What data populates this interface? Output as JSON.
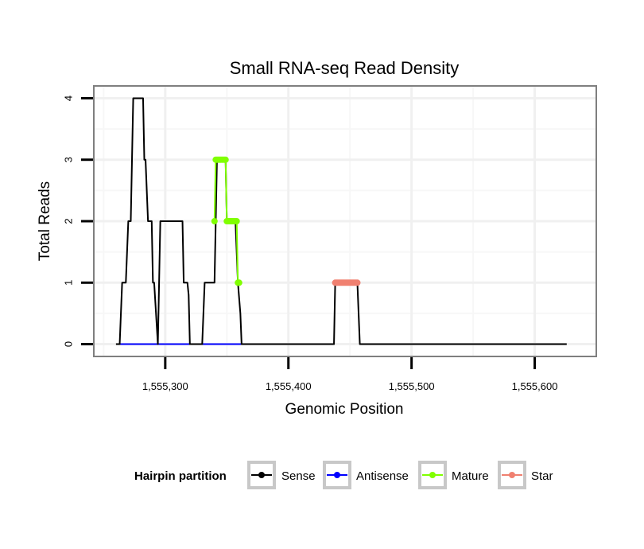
{
  "chart_data": {
    "type": "line",
    "title": "Small RNA-seq Read Density",
    "xlabel": "Genomic Position",
    "ylabel": "Total Reads",
    "xlim": [
      1555242,
      1555650
    ],
    "ylim": [
      -0.2,
      4.2
    ],
    "xticks": [
      {
        "value": 1555300,
        "label": "1,555,300"
      },
      {
        "value": 1555400,
        "label": "1,555,400"
      },
      {
        "value": 1555500,
        "label": "1,555,500"
      },
      {
        "value": 1555600,
        "label": "1,555,600"
      }
    ],
    "yticks": [
      {
        "value": 0,
        "label": "0"
      },
      {
        "value": 1,
        "label": "1"
      },
      {
        "value": 2,
        "label": "2"
      },
      {
        "value": 3,
        "label": "3"
      },
      {
        "value": 4,
        "label": "4"
      }
    ],
    "legend": {
      "title": "Hairpin partition",
      "position": "bottom"
    },
    "series": [
      {
        "name": "Sense",
        "color": "#000000",
        "line": true,
        "points": false,
        "x": [
          1555260,
          1555263,
          1555265,
          1555266,
          1555268,
          1555270,
          1555272,
          1555274,
          1555275,
          1555282,
          1555283,
          1555284,
          1555286,
          1555289,
          1555290,
          1555291,
          1555294,
          1555296,
          1555297,
          1555314,
          1555315,
          1555318,
          1555319,
          1555320,
          1555323,
          1555330,
          1555332,
          1555340,
          1555341,
          1555342,
          1555349,
          1555350,
          1555357,
          1555359,
          1555361,
          1555362,
          1555437,
          1555438,
          1555456,
          1555458,
          1555460,
          1555626
        ],
        "y": [
          0,
          0,
          1,
          1,
          1,
          2,
          2,
          4,
          4,
          4,
          3,
          3,
          2,
          2,
          1,
          1,
          0,
          2,
          2,
          2,
          1,
          1,
          0.8,
          0,
          0,
          0,
          1,
          1,
          2,
          3,
          3,
          2,
          2,
          1,
          0.5,
          0,
          0,
          1,
          1,
          0,
          0,
          0
        ]
      },
      {
        "name": "Antisense",
        "color": "#0000ff",
        "line": true,
        "points": false,
        "x": [
          1555262,
          1555362
        ],
        "y": [
          0,
          0
        ]
      },
      {
        "name": "Mature",
        "color": "#80ff00",
        "line": true,
        "points": true,
        "x": [
          1555340,
          1555341,
          1555342,
          1555343,
          1555344,
          1555345,
          1555346,
          1555347,
          1555348,
          1555349,
          1555350,
          1555351,
          1555352,
          1555353,
          1555354,
          1555355,
          1555356,
          1555357,
          1555358,
          1555359,
          1555360
        ],
        "y": [
          2,
          3,
          3,
          3,
          3,
          3,
          3,
          3,
          3,
          3,
          2,
          2,
          2,
          2,
          2,
          2,
          2,
          2,
          2,
          1,
          1
        ]
      },
      {
        "name": "Star",
        "color": "#f08070",
        "line": true,
        "points": true,
        "x": [
          1555438,
          1555439,
          1555440,
          1555441,
          1555442,
          1555443,
          1555444,
          1555445,
          1555446,
          1555447,
          1555448,
          1555449,
          1555450,
          1555451,
          1555452,
          1555453,
          1555454,
          1555455,
          1555456
        ],
        "y": [
          1,
          1,
          1,
          1,
          1,
          1,
          1,
          1,
          1,
          1,
          1,
          1,
          1,
          1,
          1,
          1,
          1,
          1,
          1
        ]
      }
    ]
  }
}
